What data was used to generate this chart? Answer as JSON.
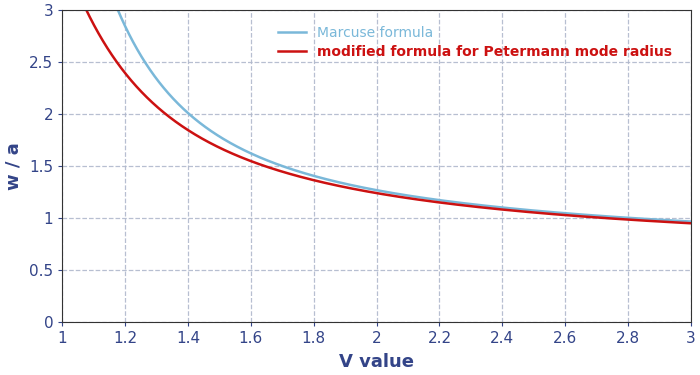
{
  "xlabel": "V value",
  "ylabel": "w / a",
  "xlim": [
    1.0,
    3.0
  ],
  "ylim": [
    0.0,
    3.0
  ],
  "xticks": [
    1.0,
    1.2,
    1.4,
    1.6,
    1.8,
    2.0,
    2.2,
    2.4,
    2.6,
    2.8,
    3.0
  ],
  "yticks": [
    0,
    0.5,
    1.0,
    1.5,
    2.0,
    2.5,
    3.0
  ],
  "marcuse_color": "#7ab8d9",
  "petermann_color": "#cc1111",
  "marcuse_label": "Marcuse formula",
  "petermann_label": "modified formula for Petermann mode radius",
  "background_color": "#ffffff",
  "grid_color": "#b0b8cc",
  "marcuse_linewidth": 1.8,
  "petermann_linewidth": 1.8,
  "xlabel_fontsize": 13,
  "ylabel_fontsize": 13,
  "tick_fontsize": 11,
  "legend_fontsize": 10
}
